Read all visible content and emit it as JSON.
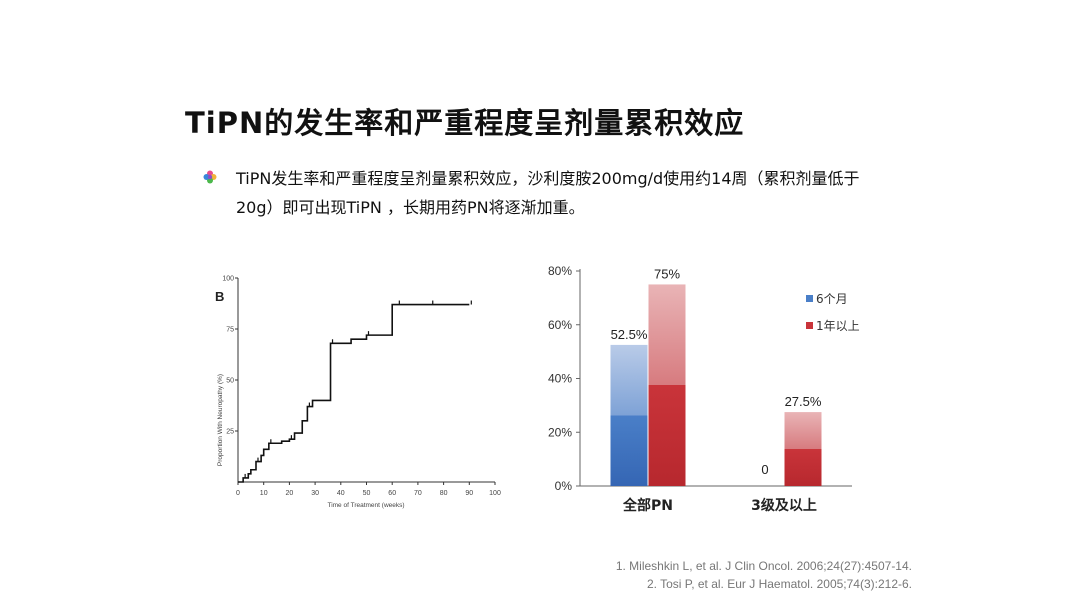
{
  "slide": {
    "title": "TiPN的发生率和严重程度呈剂量累积效应",
    "bullet": "TiPN发生率和严重程度呈剂量累积效应，沙利度胺200mg/d使用约14周（累积剂量低于20g）即可出现TiPN ，长期用药PN将逐渐加重。",
    "bullet_icon": "flower-bullet-icon",
    "references": [
      "1. Mileshkin L, et al. J Clin Oncol. 2006;24(27):4507-14.",
      "2. Tosi P, et al. Eur J Haematol. 2005;74(3):212-6."
    ]
  },
  "chart_data": [
    {
      "type": "line",
      "panel_label": "B",
      "xlabel": "Time of Treatment (weeks)",
      "ylabel": "Proportion With Neuropathy (%)",
      "xlim": [
        0,
        100
      ],
      "ylim": [
        0,
        100
      ],
      "xticks": [
        "0",
        "10",
        "20",
        "30",
        "40",
        "50",
        "60",
        "70",
        "80",
        "90",
        "100"
      ],
      "yticks": [
        "25",
        "50",
        "75",
        "100"
      ],
      "step": true,
      "x": [
        0,
        2,
        4,
        5,
        7,
        9,
        10,
        12,
        14,
        17,
        20,
        22,
        25,
        27,
        29,
        33,
        36,
        40,
        44,
        50,
        56,
        60,
        62,
        66,
        70,
        75,
        80,
        85,
        90
      ],
      "y": [
        0,
        2,
        4,
        6,
        10,
        13,
        16,
        19,
        19,
        20,
        21,
        24,
        30,
        37,
        40,
        40,
        68,
        68,
        70,
        72,
        72,
        87,
        87,
        87,
        87,
        87,
        87,
        87,
        87
      ]
    },
    {
      "type": "bar",
      "categories": [
        "全部PN",
        "3级及以上"
      ],
      "series": [
        {
          "name": "6个月",
          "values": [
            52.5,
            0
          ],
          "labels": [
            "52.5%",
            "0"
          ]
        },
        {
          "name": "1年以上",
          "values": [
            75,
            27.5
          ],
          "labels": [
            "75%",
            "27.5%"
          ]
        }
      ],
      "ylim": [
        0,
        80
      ],
      "yticks": [
        "0%",
        "20%",
        "40%",
        "60%",
        "80%"
      ],
      "legend": "top-right",
      "colors": [
        "#4a7fc8",
        "#c9343a"
      ]
    }
  ]
}
